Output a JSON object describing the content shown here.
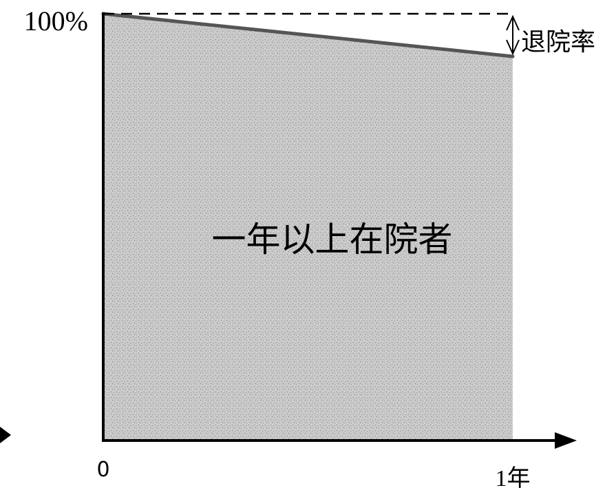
{
  "chart_data": {
    "type": "area",
    "x": [
      0,
      1
    ],
    "y": [
      100,
      90
    ],
    "xlim": [
      0,
      1
    ],
    "ylim": [
      0,
      100
    ],
    "y_max_label": "100%",
    "x_start_label": "0",
    "x_end_label": "1年",
    "area_label": "一年以上在院者",
    "gap_label": "退院率",
    "grid": false,
    "colors": {
      "fill": "#c4c4c4",
      "fill_speckle": "#8a8a8a",
      "line": "#555555",
      "axis": "#000000"
    }
  }
}
